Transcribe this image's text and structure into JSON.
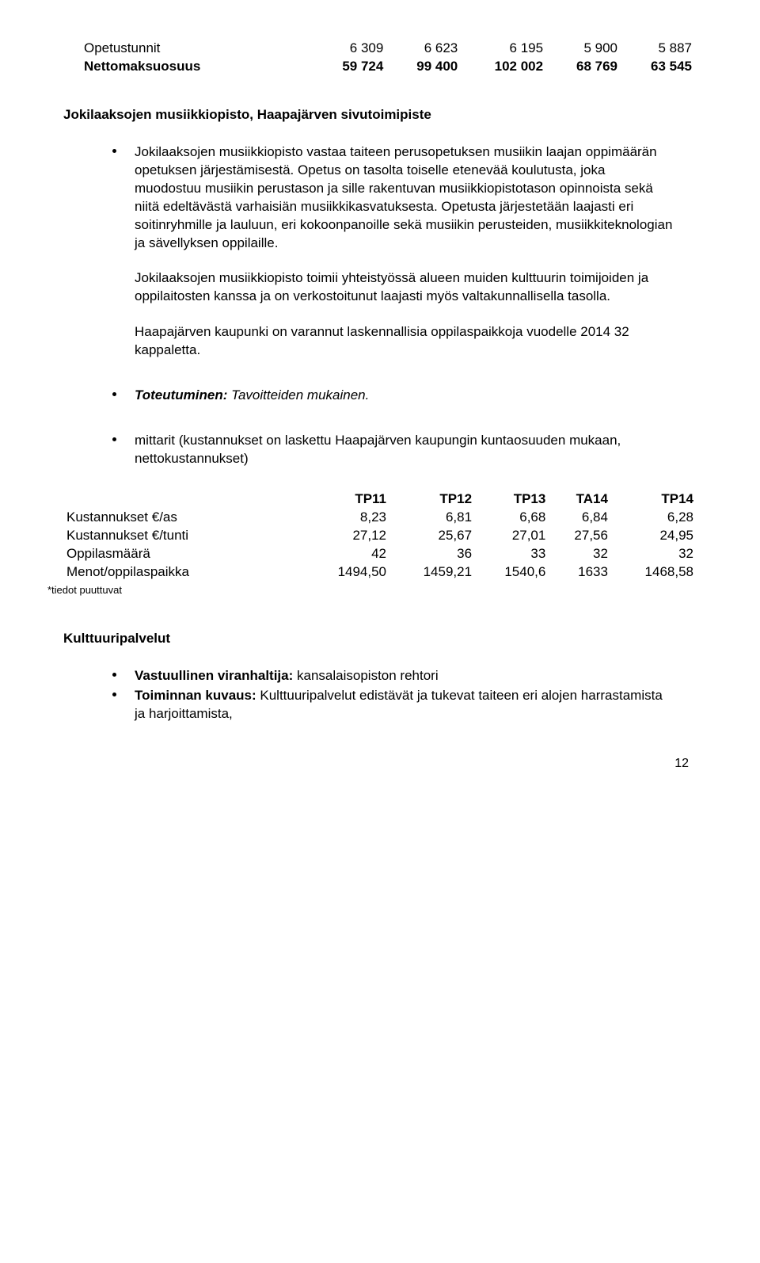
{
  "table1": {
    "rows": [
      {
        "label": "Opetustunnit",
        "c1": "6 309",
        "c2": "6 623",
        "c3": "6 195",
        "c4": "5 900",
        "c5": "5 887",
        "bold": false
      },
      {
        "label": "Nettomaksuosuus",
        "c1": "59 724",
        "c2": "99 400",
        "c3": "102 002",
        "c4": "68 769",
        "c5": "63 545",
        "bold": true
      }
    ]
  },
  "heading1": "Jokilaaksojen musiikkiopisto, Haapajärven sivutoimipiste",
  "para1": "Jokilaaksojen musiikkiopisto vastaa taiteen perusopetuksen musiikin laajan oppimäärän opetuksen järjestämisestä. Opetus on tasolta toiselle etenevää koulutusta, joka muodostuu musiikin perustason ja sille rakentuvan musiikkiopistotason opinnoista sekä niitä edeltävästä varhaisiän musiikkikasvatuksesta. Opetusta järjestetään laajasti eri soitinryhmille ja lauluun, eri kokoonpanoille sekä musiikin perusteiden, musiikkiteknologian ja sävellyksen oppilaille.",
  "para2": "Jokilaaksojen musiikkiopisto toimii yhteistyössä alueen muiden kulttuurin toimijoiden ja oppilaitosten kanssa ja on verkostoitunut laajasti myös valtakunnallisella tasolla.",
  "para3": "Haapajärven kaupunki on varannut laskennallisia oppilaspaikkoja vuodelle 2014 32 kappaletta.",
  "toteutuminen_label": "Toteutuminen:",
  "toteutuminen_value": " Tavoitteiden mukainen.",
  "mittarit": "mittarit (kustannukset on laskettu Haapajärven kaupungin kuntaosuuden mukaan, nettokustannukset)",
  "table2": {
    "headers": [
      "",
      "TP11",
      "TP12",
      "TP13",
      "TA14",
      "TP14"
    ],
    "rows": [
      {
        "label": "Kustannukset €/as",
        "c1": "8,23",
        "c2": "6,81",
        "c3": "6,68",
        "c4": "6,84",
        "c5": "6,28"
      },
      {
        "label": "Kustannukset €/tunti",
        "c1": "27,12",
        "c2": "25,67",
        "c3": "27,01",
        "c4": "27,56",
        "c5": "24,95"
      },
      {
        "label": "Oppilasmäärä",
        "c1": "42",
        "c2": "36",
        "c3": "33",
        "c4": "32",
        "c5": "32"
      },
      {
        "label": "Menot/oppilaspaikka",
        "c1": "1494,50",
        "c2": "1459,21",
        "c3": "1540,6",
        "c4": "1633",
        "c5": "1468,58"
      }
    ]
  },
  "footnote": "*tiedot puuttuvat",
  "heading2": "Kulttuuripalvelut",
  "vastuullinen_label": "Vastuullinen viranhaltija:",
  "vastuullinen_value": " kansalaisopiston rehtori",
  "toiminnan_label": "Toiminnan kuvaus:",
  "toiminnan_value": " Kulttuuripalvelut edistävät ja tukevat taiteen eri alojen harrastamista ja harjoittamista,",
  "page_number": "12"
}
